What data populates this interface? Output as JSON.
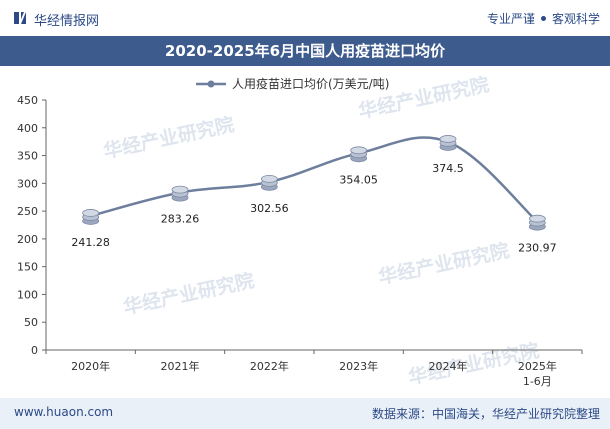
{
  "header": {
    "brand": "华经情报网",
    "slogan_left": "专业严谨",
    "slogan_right": "客观科学"
  },
  "title": "2020-2025年6月中国人用疫苗进口均价",
  "footer": {
    "site": "www.huaon.com",
    "source": "数据来源：中国海关，华经产业研究院整理"
  },
  "watermark": {
    "text": "华经产业研究院",
    "url": "www.huaon.com"
  },
  "colors": {
    "line": "#6d7f9c",
    "title_bg": "#3d5b8d",
    "footer_bg": "#eaf0f8"
  },
  "chart_data": {
    "type": "line",
    "title": "2020-2025年6月中国人用疫苗进口均价",
    "categories": [
      "2020年",
      "2021年",
      "2022年",
      "2023年",
      "2024年",
      "2025年 1-6月"
    ],
    "series": [
      {
        "name": "人用疫苗进口均价(万美元/吨)",
        "values": [
          241.28,
          283.26,
          302.56,
          354.05,
          374.5,
          230.97
        ],
        "labels": [
          "241.28",
          "283.26",
          "302.56",
          "354.05",
          "374.5",
          "230.97"
        ]
      }
    ],
    "ylim": [
      0,
      450
    ],
    "yticks": [
      0,
      50,
      100,
      150,
      200,
      250,
      300,
      350,
      400,
      450
    ],
    "xlabel": "",
    "ylabel": "",
    "legend": "top-center",
    "grid": false
  }
}
